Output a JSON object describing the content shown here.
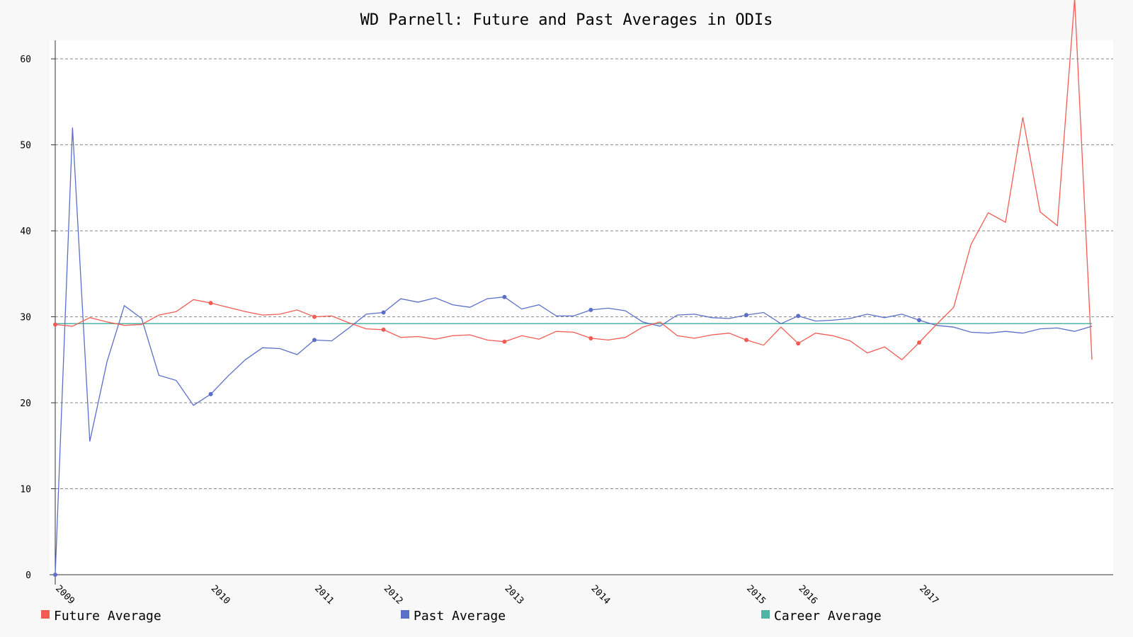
{
  "chart_data": {
    "type": "line",
    "title": "WD Parnell: Future and Past Averages in ODIs",
    "xlabel": "",
    "ylabel": "",
    "ylim": [
      0,
      61
    ],
    "y_ticks": [
      0,
      10,
      20,
      30,
      40,
      50,
      60
    ],
    "x_tick_labels": [
      "2009",
      "2010",
      "2011",
      "2012",
      "2013",
      "2014",
      "2015",
      "2016",
      "2017"
    ],
    "x_tick_indices": [
      0,
      9,
      15,
      19,
      26,
      31,
      40,
      43,
      50
    ],
    "grid": true,
    "legend_position": "bottom",
    "colors": {
      "future": "#f25c54",
      "past": "#5b6fc8",
      "career": "#4fb5a5"
    },
    "series": [
      {
        "name": "Future Average",
        "color": "#f25c54",
        "values": [
          29.1,
          28.9,
          29.9,
          29.4,
          29.0,
          29.1,
          30.2,
          30.6,
          32.0,
          31.6,
          31.1,
          30.6,
          30.2,
          30.3,
          30.8,
          30.0,
          30.1,
          29.3,
          28.6,
          28.5,
          27.6,
          27.7,
          27.4,
          27.8,
          27.9,
          27.3,
          27.1,
          27.8,
          27.4,
          28.3,
          28.2,
          27.5,
          27.3,
          27.6,
          28.8,
          29.4,
          27.8,
          27.5,
          27.9,
          28.1,
          27.3,
          26.7,
          28.8,
          26.9,
          28.1,
          27.8,
          27.2,
          25.8,
          26.5,
          25.0,
          27.0,
          29.1,
          31.1,
          38.4,
          42.1,
          41.0,
          53.2,
          42.2,
          40.6,
          67.0,
          25.0
        ],
        "markers": [
          0,
          9,
          15,
          19,
          26,
          31,
          40,
          43,
          50
        ]
      },
      {
        "name": "Past Average",
        "color": "#5b6fc8",
        "values": [
          0.0,
          52.0,
          15.5,
          24.8,
          31.3,
          29.8,
          23.2,
          22.6,
          19.7,
          21.0,
          23.1,
          25.0,
          26.4,
          26.3,
          25.6,
          27.3,
          27.2,
          28.7,
          30.3,
          30.5,
          32.1,
          31.7,
          32.2,
          31.4,
          31.1,
          32.1,
          32.3,
          30.9,
          31.4,
          30.1,
          30.1,
          30.8,
          31.0,
          30.7,
          29.4,
          28.9,
          30.2,
          30.3,
          29.9,
          29.8,
          30.2,
          30.5,
          29.2,
          30.1,
          29.5,
          29.6,
          29.8,
          30.3,
          29.9,
          30.3,
          29.6,
          29.0,
          28.8,
          28.2,
          28.1,
          28.3,
          28.1,
          28.6,
          28.7,
          28.3,
          28.9
        ],
        "markers": [
          0,
          9,
          15,
          19,
          26,
          31,
          40,
          43,
          50
        ]
      },
      {
        "name": "Career Average",
        "color": "#4fb5a5",
        "values": [
          29.2,
          29.2
        ]
      }
    ]
  }
}
